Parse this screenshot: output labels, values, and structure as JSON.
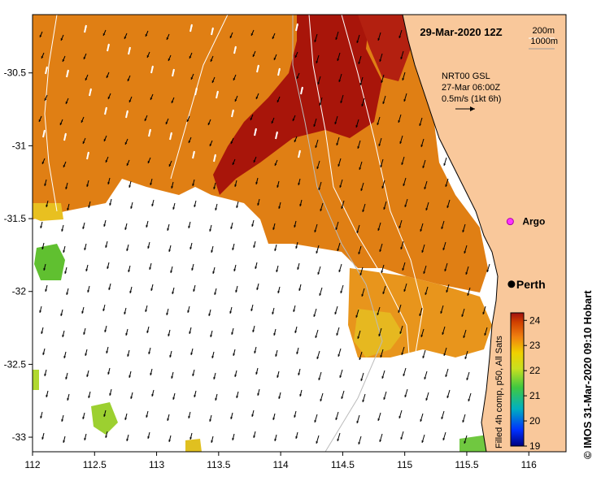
{
  "map": {
    "title": "29-Mar-2020 12Z",
    "isobaths": [
      "200m",
      "1000m"
    ],
    "current_info": [
      "NRT00 GSL",
      "27-Mar 06:00Z",
      "0.5m/s (1kt 6h)"
    ],
    "argo_label": "Argo",
    "city_label": "Perth",
    "credit": "© IMOS 31-Mar-2020 09:10 Hobart",
    "colorbar_label": "Filled 4h comp, p50, All Sats",
    "colorbar_ticks": [
      "24",
      "23",
      "22",
      "21",
      "20",
      "19"
    ],
    "colorbar_range": [
      19,
      24.3
    ],
    "x_axis": {
      "range": [
        112,
        116.3
      ],
      "ticks": [
        "112",
        "112.5",
        "113",
        "113.5",
        "114",
        "114.5",
        "115",
        "115.5",
        "116"
      ]
    },
    "y_axis": {
      "range": [
        -33.1,
        -30.1
      ],
      "ticks": [
        "-30.5",
        "-31",
        "-31.5",
        "-32",
        "-32.5",
        "-33"
      ]
    },
    "argo_position": {
      "lon": 115.85,
      "lat": -31.52
    },
    "perth_position": {
      "lon": 115.86,
      "lat": -31.95
    },
    "colors": {
      "land": "#f9c89b",
      "warm": "#e07f14",
      "hot": "#a8150a",
      "argo": "#ff33ff"
    }
  }
}
